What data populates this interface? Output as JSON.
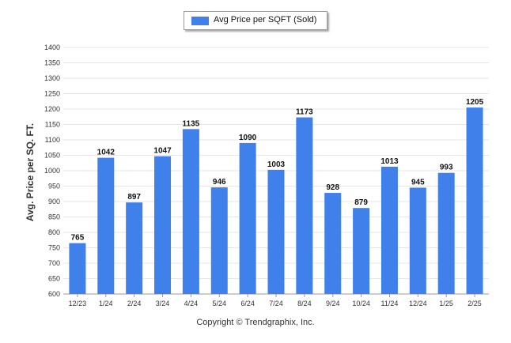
{
  "colors": {
    "bar": "#3f80ea",
    "grid": "#e6e6e6",
    "axis": "#999999"
  },
  "legend": {
    "label": "Avg Price per SQFT (Sold)"
  },
  "footer": {
    "copyright": "Copyright © Trendgraphix, Inc."
  },
  "chart_data": {
    "type": "bar",
    "title": "",
    "xlabel": "",
    "ylabel": "Avg. Price per SQ. FT.",
    "ylim": [
      600,
      1400
    ],
    "yticks": [
      600,
      650,
      700,
      750,
      800,
      850,
      900,
      950,
      1000,
      1050,
      1100,
      1150,
      1200,
      1250,
      1300,
      1350,
      1400
    ],
    "grid": true,
    "legend_position": "top-center",
    "categories": [
      "12/23",
      "1/24",
      "2/24",
      "3/24",
      "4/24",
      "5/24",
      "6/24",
      "7/24",
      "8/24",
      "9/24",
      "10/24",
      "11/24",
      "12/24",
      "1/25",
      "2/25"
    ],
    "series": [
      {
        "name": "Avg Price per SQFT (Sold)",
        "values": [
          765,
          1042,
          897,
          1047,
          1135,
          946,
          1090,
          1003,
          1173,
          928,
          879,
          1013,
          945,
          993,
          1205
        ]
      }
    ]
  }
}
